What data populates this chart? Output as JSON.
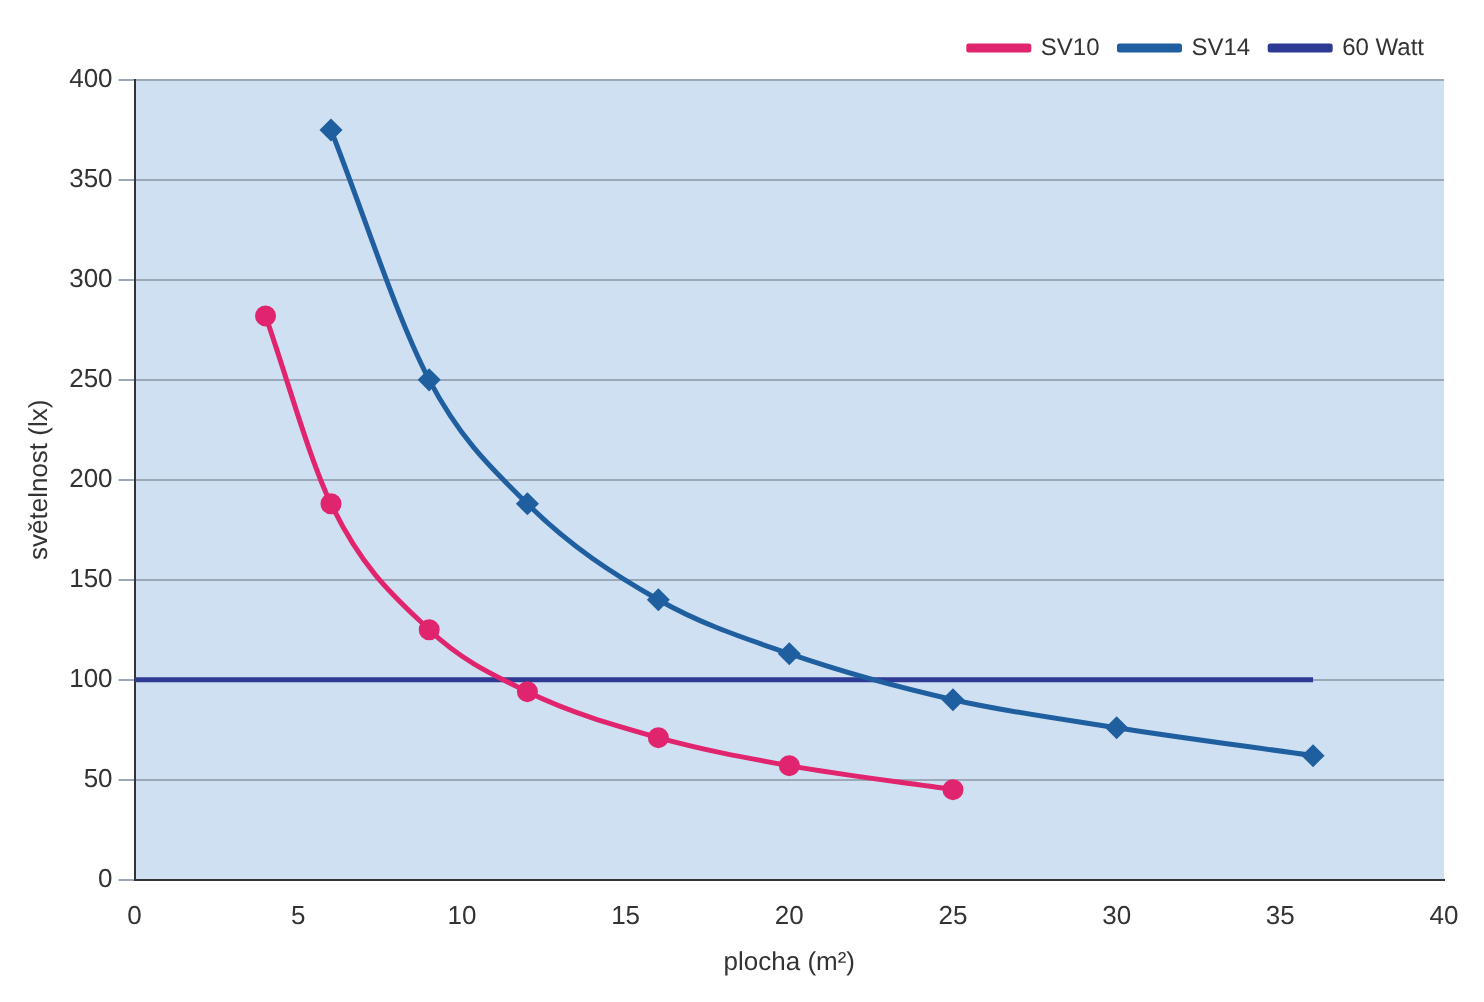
{
  "chart_data": {
    "type": "line",
    "xlabel": "plocha (m²)",
    "ylabel": "světelnost (lx)",
    "xlim": [
      0,
      40
    ],
    "xticks": [
      0,
      5,
      10,
      15,
      20,
      25,
      30,
      35,
      40
    ],
    "ylim": [
      0,
      400
    ],
    "yticks": [
      0,
      50,
      100,
      150,
      200,
      250,
      300,
      350,
      400
    ],
    "grid": "y",
    "legend": "top right",
    "series": [
      {
        "name": "SV10",
        "color": "#e0246e",
        "marker": "circle",
        "x": [
          4,
          6,
          9,
          12,
          16,
          20,
          25
        ],
        "values": [
          282,
          188,
          125,
          94,
          71,
          57,
          45
        ]
      },
      {
        "name": "SV14",
        "color": "#1f5fa0",
        "marker": "diamond",
        "x": [
          6,
          9,
          12,
          16,
          20,
          25,
          30,
          36
        ],
        "values": [
          375,
          250,
          188,
          140,
          113,
          90,
          76,
          62
        ]
      },
      {
        "name": "60 Watt",
        "color": "#2e3a94",
        "marker": "none",
        "x": [
          0,
          36
        ],
        "values": [
          100,
          100
        ]
      }
    ]
  }
}
